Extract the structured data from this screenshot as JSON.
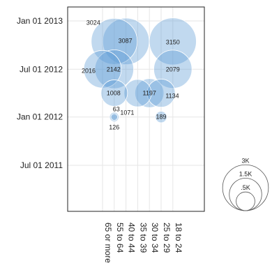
{
  "chart_data": {
    "type": "scatter",
    "encoding": "bubble",
    "x_axis": {
      "categories": [
        "65 or more",
        "55 to 64",
        "40 to 44",
        "35 to 39",
        "30 to 34",
        "25 to 29",
        "18 to 24"
      ],
      "label_orientation": "vertical"
    },
    "y_axis": {
      "ticks": [
        "Jan 01 2013",
        "Jul 01 2012",
        "Jan 01 2012",
        "Jul 01 2011"
      ]
    },
    "grid": true,
    "fill_color": "#5b9bd5",
    "bubbles": [
      {
        "x": "55 to 64",
        "y": "2012-10-15",
        "value": 3024
      },
      {
        "x": "40 to 44",
        "y": "2012-10-15",
        "value": 3087
      },
      {
        "x": "18 to 24",
        "y": "2012-10-15",
        "value": 3150
      },
      {
        "x": "65 or more",
        "y": "2012-07-01",
        "value": 2016
      },
      {
        "x": "55 to 64",
        "y": "2012-07-01",
        "value": 2142
      },
      {
        "x": "18 to 24",
        "y": "2012-07-01",
        "value": 2079
      },
      {
        "x": "55 to 64",
        "y": "2012-04-01",
        "value": 1008
      },
      {
        "x": "35 to 39",
        "y": "2012-04-01",
        "value": 1071
      },
      {
        "x": "30 to 34",
        "y": "2012-04-01",
        "value": 1197
      },
      {
        "x": "25 to 29",
        "y": "2012-04-01",
        "value": 1134
      },
      {
        "x": "55 to 64",
        "y": "2012-01-01",
        "value": 63
      },
      {
        "x": "55 to 64",
        "y": "2012-01-01",
        "value": 126
      },
      {
        "x": "25 to 29",
        "y": "2012-01-01",
        "value": 189
      }
    ],
    "size_legend": [
      {
        "label": "3K",
        "value": 3000
      },
      {
        "label": "1.5K",
        "value": 1500
      },
      {
        "label": ".5K",
        "value": 500
      }
    ]
  }
}
